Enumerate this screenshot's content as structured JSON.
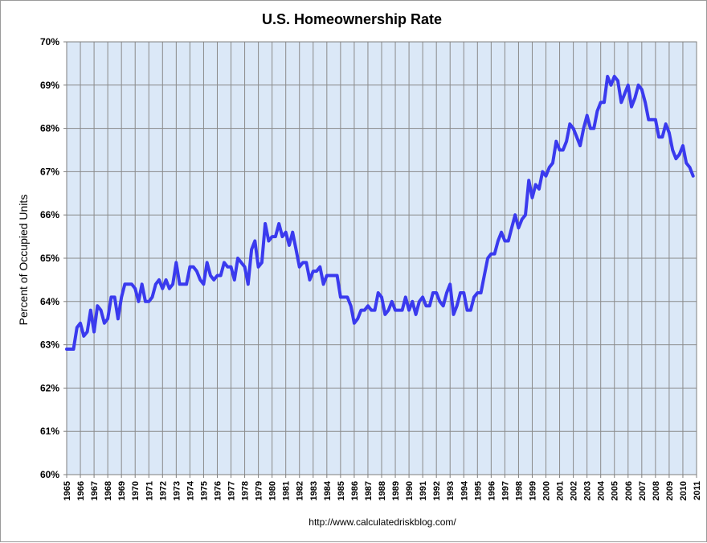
{
  "chart_data": {
    "type": "line",
    "title": "U.S. Homeownership Rate",
    "xlabel": "",
    "ylabel": "Percent of Occupied Units",
    "source": "http://www.calculatedriskblog.com/",
    "ylim": [
      60,
      70
    ],
    "xlim": [
      1965,
      2011
    ],
    "y_ticks": [
      "60%",
      "61%",
      "62%",
      "63%",
      "64%",
      "65%",
      "66%",
      "67%",
      "68%",
      "69%",
      "70%"
    ],
    "x_ticks": [
      "1965",
      "1966",
      "1967",
      "1968",
      "1969",
      "1970",
      "1971",
      "1972",
      "1973",
      "1974",
      "1975",
      "1976",
      "1977",
      "1978",
      "1979",
      "1980",
      "1981",
      "1982",
      "1983",
      "1984",
      "1985",
      "1986",
      "1987",
      "1988",
      "1989",
      "1990",
      "1991",
      "1992",
      "1993",
      "1994",
      "1995",
      "1996",
      "1997",
      "1998",
      "1999",
      "2000",
      "2001",
      "2002",
      "2003",
      "2004",
      "2005",
      "2006",
      "2007",
      "2008",
      "2009",
      "2010",
      "2011"
    ],
    "grid": true,
    "line_color": "#3a3aee",
    "plot_background": "#dbe8f7",
    "series": [
      {
        "values": [
          [
            1965.0,
            62.9
          ],
          [
            1965.25,
            62.9
          ],
          [
            1965.5,
            62.9
          ],
          [
            1965.75,
            63.4
          ],
          [
            1966.0,
            63.5
          ],
          [
            1966.25,
            63.2
          ],
          [
            1966.5,
            63.3
          ],
          [
            1966.75,
            63.8
          ],
          [
            1967.0,
            63.3
          ],
          [
            1967.25,
            63.9
          ],
          [
            1967.5,
            63.8
          ],
          [
            1967.75,
            63.5
          ],
          [
            1968.0,
            63.6
          ],
          [
            1968.25,
            64.1
          ],
          [
            1968.5,
            64.1
          ],
          [
            1968.75,
            63.6
          ],
          [
            1969.0,
            64.1
          ],
          [
            1969.25,
            64.4
          ],
          [
            1969.5,
            64.4
          ],
          [
            1969.75,
            64.4
          ],
          [
            1970.0,
            64.3
          ],
          [
            1970.25,
            64.0
          ],
          [
            1970.5,
            64.4
          ],
          [
            1970.75,
            64.0
          ],
          [
            1971.0,
            64.0
          ],
          [
            1971.25,
            64.1
          ],
          [
            1971.5,
            64.4
          ],
          [
            1971.75,
            64.5
          ],
          [
            1972.0,
            64.3
          ],
          [
            1972.25,
            64.5
          ],
          [
            1972.5,
            64.3
          ],
          [
            1972.75,
            64.4
          ],
          [
            1973.0,
            64.9
          ],
          [
            1973.25,
            64.4
          ],
          [
            1973.5,
            64.4
          ],
          [
            1973.75,
            64.4
          ],
          [
            1974.0,
            64.8
          ],
          [
            1974.25,
            64.8
          ],
          [
            1974.5,
            64.7
          ],
          [
            1974.75,
            64.5
          ],
          [
            1975.0,
            64.4
          ],
          [
            1975.25,
            64.9
          ],
          [
            1975.5,
            64.6
          ],
          [
            1975.75,
            64.5
          ],
          [
            1976.0,
            64.6
          ],
          [
            1976.25,
            64.6
          ],
          [
            1976.5,
            64.9
          ],
          [
            1976.75,
            64.8
          ],
          [
            1977.0,
            64.8
          ],
          [
            1977.25,
            64.5
          ],
          [
            1977.5,
            65.0
          ],
          [
            1977.75,
            64.9
          ],
          [
            1978.0,
            64.8
          ],
          [
            1978.25,
            64.4
          ],
          [
            1978.5,
            65.2
          ],
          [
            1978.75,
            65.4
          ],
          [
            1979.0,
            64.8
          ],
          [
            1979.25,
            64.9
          ],
          [
            1979.5,
            65.8
          ],
          [
            1979.75,
            65.4
          ],
          [
            1980.0,
            65.5
          ],
          [
            1980.25,
            65.5
          ],
          [
            1980.5,
            65.8
          ],
          [
            1980.75,
            65.5
          ],
          [
            1981.0,
            65.6
          ],
          [
            1981.25,
            65.3
          ],
          [
            1981.5,
            65.6
          ],
          [
            1981.75,
            65.2
          ],
          [
            1982.0,
            64.8
          ],
          [
            1982.25,
            64.9
          ],
          [
            1982.5,
            64.9
          ],
          [
            1982.75,
            64.5
          ],
          [
            1983.0,
            64.7
          ],
          [
            1983.25,
            64.7
          ],
          [
            1983.5,
            64.8
          ],
          [
            1983.75,
            64.4
          ],
          [
            1984.0,
            64.6
          ],
          [
            1984.25,
            64.6
          ],
          [
            1984.5,
            64.6
          ],
          [
            1984.75,
            64.6
          ],
          [
            1985.0,
            64.1
          ],
          [
            1985.25,
            64.1
          ],
          [
            1985.5,
            64.1
          ],
          [
            1985.75,
            63.9
          ],
          [
            1986.0,
            63.5
          ],
          [
            1986.25,
            63.6
          ],
          [
            1986.5,
            63.8
          ],
          [
            1986.75,
            63.8
          ],
          [
            1987.0,
            63.9
          ],
          [
            1987.25,
            63.8
          ],
          [
            1987.5,
            63.8
          ],
          [
            1987.75,
            64.2
          ],
          [
            1988.0,
            64.1
          ],
          [
            1988.25,
            63.7
          ],
          [
            1988.5,
            63.8
          ],
          [
            1988.75,
            64.0
          ],
          [
            1989.0,
            63.8
          ],
          [
            1989.25,
            63.8
          ],
          [
            1989.5,
            63.8
          ],
          [
            1989.75,
            64.1
          ],
          [
            1990.0,
            63.8
          ],
          [
            1990.25,
            64.0
          ],
          [
            1990.5,
            63.7
          ],
          [
            1990.75,
            64.0
          ],
          [
            1991.0,
            64.1
          ],
          [
            1991.25,
            63.9
          ],
          [
            1991.5,
            63.9
          ],
          [
            1991.75,
            64.2
          ],
          [
            1992.0,
            64.2
          ],
          [
            1992.25,
            64.0
          ],
          [
            1992.5,
            63.9
          ],
          [
            1992.75,
            64.2
          ],
          [
            1993.0,
            64.4
          ],
          [
            1993.25,
            63.7
          ],
          [
            1993.5,
            63.9
          ],
          [
            1993.75,
            64.2
          ],
          [
            1994.0,
            64.2
          ],
          [
            1994.25,
            63.8
          ],
          [
            1994.5,
            63.8
          ],
          [
            1994.75,
            64.1
          ],
          [
            1995.0,
            64.2
          ],
          [
            1995.25,
            64.2
          ],
          [
            1995.5,
            64.6
          ],
          [
            1995.75,
            65.0
          ],
          [
            1996.0,
            65.1
          ],
          [
            1996.25,
            65.1
          ],
          [
            1996.5,
            65.4
          ],
          [
            1996.75,
            65.6
          ],
          [
            1997.0,
            65.4
          ],
          [
            1997.25,
            65.4
          ],
          [
            1997.5,
            65.7
          ],
          [
            1997.75,
            66.0
          ],
          [
            1998.0,
            65.7
          ],
          [
            1998.25,
            65.9
          ],
          [
            1998.5,
            66.0
          ],
          [
            1998.75,
            66.8
          ],
          [
            1999.0,
            66.4
          ],
          [
            1999.25,
            66.7
          ],
          [
            1999.5,
            66.6
          ],
          [
            1999.75,
            67.0
          ],
          [
            2000.0,
            66.9
          ],
          [
            2000.25,
            67.1
          ],
          [
            2000.5,
            67.2
          ],
          [
            2000.75,
            67.7
          ],
          [
            2001.0,
            67.5
          ],
          [
            2001.25,
            67.5
          ],
          [
            2001.5,
            67.7
          ],
          [
            2001.75,
            68.1
          ],
          [
            2002.0,
            68.0
          ],
          [
            2002.25,
            67.8
          ],
          [
            2002.5,
            67.6
          ],
          [
            2002.75,
            68.0
          ],
          [
            2003.0,
            68.3
          ],
          [
            2003.25,
            68.0
          ],
          [
            2003.5,
            68.0
          ],
          [
            2003.75,
            68.4
          ],
          [
            2004.0,
            68.6
          ],
          [
            2004.25,
            68.6
          ],
          [
            2004.5,
            69.2
          ],
          [
            2004.75,
            69.0
          ],
          [
            2005.0,
            69.2
          ],
          [
            2005.25,
            69.1
          ],
          [
            2005.5,
            68.6
          ],
          [
            2005.75,
            68.8
          ],
          [
            2006.0,
            69.0
          ],
          [
            2006.25,
            68.5
          ],
          [
            2006.5,
            68.7
          ],
          [
            2006.75,
            69.0
          ],
          [
            2007.0,
            68.9
          ],
          [
            2007.25,
            68.6
          ],
          [
            2007.5,
            68.2
          ],
          [
            2007.75,
            68.2
          ],
          [
            2008.0,
            68.2
          ],
          [
            2008.25,
            67.8
          ],
          [
            2008.5,
            67.8
          ],
          [
            2008.75,
            68.1
          ],
          [
            2009.0,
            67.9
          ],
          [
            2009.25,
            67.5
          ],
          [
            2009.5,
            67.3
          ],
          [
            2009.75,
            67.4
          ],
          [
            2010.0,
            67.6
          ],
          [
            2010.25,
            67.2
          ],
          [
            2010.5,
            67.1
          ],
          [
            2010.75,
            66.9
          ]
        ]
      }
    ]
  }
}
